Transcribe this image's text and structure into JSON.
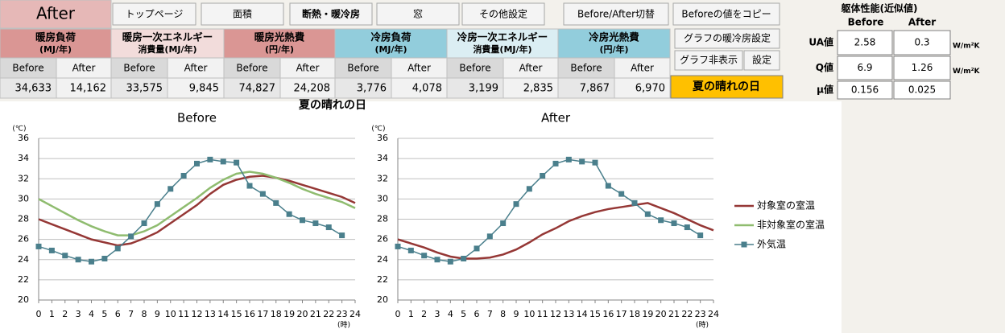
{
  "header": {
    "mode": "After",
    "buttons": [
      "トップページ",
      "面積",
      "断熱・暖冷房",
      "窓",
      "その他設定",
      "Before/After切替",
      "Beforeの値をコピー"
    ]
  },
  "results": {
    "sub_headers": [
      "Before",
      "After"
    ],
    "columns": [
      {
        "lines": [
          "暖房負荷",
          "(MJ/年)"
        ],
        "before": "34,633",
        "after": "14,162"
      },
      {
        "lines": [
          "暖房一次エネルギー",
          "消費量(MJ/年)"
        ],
        "before": "33,575",
        "after": "9,845"
      },
      {
        "lines": [
          "暖房光熱費",
          "(円/年)"
        ],
        "before": "74,827",
        "after": "24,208"
      },
      {
        "lines": [
          "冷房負荷",
          "(MJ/年)"
        ],
        "before": "3,776",
        "after": "4,078"
      },
      {
        "lines": [
          "冷房一次エネルギー",
          "消費量(MJ/年)"
        ],
        "before": "3,199",
        "after": "2,835"
      },
      {
        "lines": [
          "冷房光熱費",
          "(円/年)"
        ],
        "before": "7,867",
        "after": "6,970"
      }
    ]
  },
  "side_buttons": [
    "グラフの暖冷房設定",
    "グラフ非表示",
    "設定"
  ],
  "condition": "夏の晴れの日",
  "performance": {
    "title": "躯体性能(近似値)",
    "columns": [
      "Before",
      "After"
    ],
    "rows": [
      {
        "label": "UA値",
        "before": "2.58",
        "after": "0.3",
        "unit": "W/m²K"
      },
      {
        "label": "Q値",
        "before": "6.9",
        "after": "1.26",
        "unit": "W/m²K"
      },
      {
        "label": "μ値",
        "before": "0.156",
        "after": "0.025"
      }
    ]
  },
  "charts_title": "夏の晴れの日",
  "chart_data": [
    {
      "type": "line",
      "title": "Before",
      "ylabel": "(℃)",
      "xlabel": "(時)",
      "legend": false,
      "grid": true,
      "x": [
        0,
        1,
        2,
        3,
        4,
        5,
        6,
        7,
        8,
        9,
        10,
        11,
        12,
        13,
        14,
        15,
        16,
        17,
        18,
        19,
        20,
        21,
        22,
        23,
        24
      ],
      "xlim": [
        0,
        24
      ],
      "xticks": [
        0,
        1,
        2,
        3,
        4,
        5,
        6,
        7,
        8,
        9,
        10,
        11,
        12,
        13,
        14,
        15,
        16,
        17,
        18,
        19,
        20,
        21,
        22,
        23,
        24
      ],
      "ylim": [
        20,
        36
      ],
      "yticks": [
        20,
        22,
        24,
        26,
        28,
        30,
        32,
        34,
        36
      ],
      "series": [
        {
          "name": "対象室の室温",
          "color": "#953735",
          "values": [
            28.0,
            27.5,
            27.0,
            26.5,
            26.0,
            25.7,
            25.4,
            25.6,
            26.1,
            26.7,
            27.6,
            28.5,
            29.4,
            30.5,
            31.4,
            31.9,
            32.2,
            32.3,
            32.1,
            31.8,
            31.4,
            31.0,
            30.6,
            30.2,
            29.6
          ]
        },
        {
          "name": "非対象室の室温",
          "color": "#8fbc6f",
          "values": [
            30.0,
            29.3,
            28.6,
            27.9,
            27.3,
            26.8,
            26.4,
            26.4,
            26.8,
            27.4,
            28.3,
            29.2,
            30.1,
            31.1,
            31.9,
            32.5,
            32.7,
            32.5,
            32.1,
            31.6,
            31.0,
            30.5,
            30.1,
            29.7,
            29.1
          ]
        },
        {
          "name": "外気温",
          "color": "#4a7f8c",
          "marker": "square",
          "values": [
            25.3,
            24.9,
            24.4,
            24.0,
            23.8,
            24.1,
            25.1,
            26.3,
            27.6,
            29.5,
            31.0,
            32.3,
            33.5,
            33.9,
            33.7,
            33.6,
            31.3,
            30.5,
            29.6,
            28.5,
            27.9,
            27.6,
            27.2,
            26.4,
            null
          ]
        }
      ]
    },
    {
      "type": "line",
      "title": "After",
      "ylabel": "(℃)",
      "xlabel": "(時)",
      "legend": "right",
      "grid": true,
      "x": [
        0,
        1,
        2,
        3,
        4,
        5,
        6,
        7,
        8,
        9,
        10,
        11,
        12,
        13,
        14,
        15,
        16,
        17,
        18,
        19,
        20,
        21,
        22,
        23,
        24
      ],
      "xlim": [
        0,
        24
      ],
      "xticks": [
        0,
        1,
        2,
        3,
        4,
        5,
        6,
        7,
        8,
        9,
        10,
        11,
        12,
        13,
        14,
        15,
        16,
        17,
        18,
        19,
        20,
        21,
        22,
        23,
        24
      ],
      "ylim": [
        20,
        36
      ],
      "yticks": [
        20,
        22,
        24,
        26,
        28,
        30,
        32,
        34,
        36
      ],
      "series": [
        {
          "name": "対象室の室温",
          "color": "#953735",
          "values": [
            26.0,
            25.6,
            25.2,
            24.7,
            24.3,
            24.1,
            24.1,
            24.2,
            24.5,
            25.0,
            25.7,
            26.5,
            27.1,
            27.8,
            28.3,
            28.7,
            29.0,
            29.2,
            29.4,
            29.6,
            29.1,
            28.6,
            28.0,
            27.4,
            26.9
          ]
        },
        {
          "name": "非対象室の室温",
          "color": "#8fbc6f",
          "values": [
            null,
            null,
            null,
            null,
            null,
            null,
            null,
            null,
            null,
            null,
            null,
            null,
            null,
            null,
            null,
            null,
            null,
            null,
            null,
            null,
            null,
            null,
            null,
            null,
            null
          ]
        },
        {
          "name": "外気温",
          "color": "#4a7f8c",
          "marker": "square",
          "values": [
            25.3,
            24.9,
            24.4,
            24.0,
            23.8,
            24.1,
            25.1,
            26.3,
            27.6,
            29.5,
            31.0,
            32.3,
            33.5,
            33.9,
            33.7,
            33.6,
            31.3,
            30.5,
            29.6,
            28.5,
            27.9,
            27.6,
            27.2,
            26.4,
            null
          ]
        }
      ]
    }
  ]
}
